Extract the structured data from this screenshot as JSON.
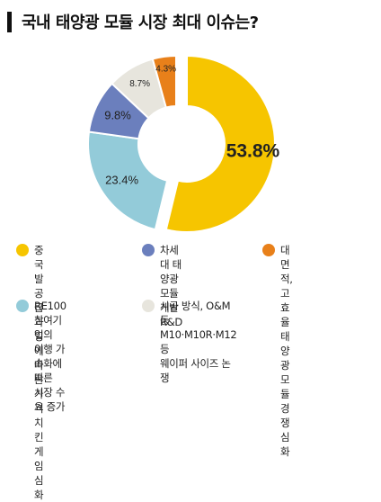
{
  "title": "국내 태양광 모듈 시장 최대 이슈는?",
  "chart_data": {
    "type": "pie",
    "style": "donut",
    "title": "국내 태양광 모듈 시장 최대 이슈는?",
    "slices": [
      {
        "label": "중국발 공급 과잉에 따른 가격 치킨게임 심화",
        "value": 53.8,
        "display": "53.8%",
        "color": "#f6c500"
      },
      {
        "label": "RE100 참여기업의 이행 가속화에 따른 시장 수요 증가",
        "value": 23.4,
        "display": "23.4%",
        "color": "#93cbd9"
      },
      {
        "label": "차세대 태양광 모듈 개발 R&D",
        "value": 9.8,
        "display": "9.8%",
        "color": "#6b7fbd"
      },
      {
        "label": "시공 방식, O&M 등 M10·M10R·M12 등 웨이퍼 사이즈 논쟁",
        "value": 8.7,
        "display": "8.7%",
        "color": "#e7e5dd"
      },
      {
        "label": "대면적, 고효율 태양광 모듈 경쟁 심화",
        "value": 4.3,
        "display": "4.3%",
        "color": "#e8801a"
      }
    ]
  },
  "legend": [
    {
      "text": "중국발 공급\n과잉에 따른 가격\n치킨게임 심화",
      "color": "#f6c500"
    },
    {
      "text": "차세대 태양광 모듈\n개발 R&D",
      "color": "#6b7fbd"
    },
    {
      "text": "대면적, 고효율\n태양광 모듈 경쟁\n심화",
      "color": "#e8801a"
    },
    {
      "text": "RE100 참여기업의\n이행 가속화에 따른\n시장 수요 증가",
      "color": "#93cbd9"
    },
    {
      "text": "시공 방식, O&M 등\nM10·M10R·M12 등\n웨이퍼 사이즈 논쟁",
      "color": "#e7e5dd"
    }
  ]
}
